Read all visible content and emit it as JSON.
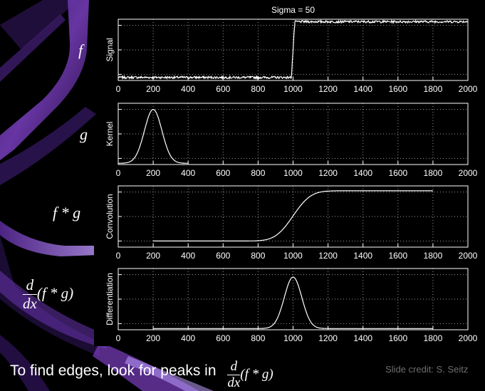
{
  "chart_data": [
    {
      "type": "line",
      "title": "Sigma = 50",
      "ylabel": "Signal",
      "side_label": "f",
      "xlim": [
        0,
        2000
      ],
      "xticks": [
        0,
        200,
        400,
        600,
        800,
        1000,
        1200,
        1400,
        1600,
        1800,
        2000
      ],
      "ylim": [
        0,
        1
      ],
      "grid": true,
      "description_points": [
        [
          0,
          0.05
        ],
        [
          990,
          0.05
        ],
        [
          1000,
          0.5
        ],
        [
          1010,
          0.96
        ],
        [
          2000,
          0.96
        ]
      ],
      "noise": 0.018
    },
    {
      "type": "line",
      "title": "",
      "ylabel": "Kernel",
      "side_label": "g",
      "xlim": [
        0,
        2000
      ],
      "xticks": [
        0,
        200,
        400,
        600,
        800,
        1000,
        1200,
        1400,
        1600,
        1800,
        2000
      ],
      "ylim": [
        0,
        1
      ],
      "grid": true,
      "gaussian": {
        "center": 200,
        "sigma": 50,
        "peak": 0.88,
        "x_range": [
          0,
          400
        ]
      }
    },
    {
      "type": "line",
      "title": "",
      "ylabel": "Convolution",
      "side_label": "f * g",
      "xlim": [
        0,
        2000
      ],
      "xticks": [
        0,
        200,
        400,
        600,
        800,
        1000,
        1200,
        1400,
        1600,
        1800,
        2000
      ],
      "ylim": [
        0,
        1
      ],
      "grid": true,
      "step": {
        "center": 1000,
        "sigma": 50,
        "low": 0.1,
        "high": 0.92,
        "x_range": [
          200,
          1800
        ]
      }
    },
    {
      "type": "line",
      "title": "",
      "ylabel": "Differentiation",
      "side_label": "d/dx (f * g)",
      "xlim": [
        0,
        2000
      ],
      "xticks": [
        0,
        200,
        400,
        600,
        800,
        1000,
        1200,
        1400,
        1600,
        1800,
        2000
      ],
      "ylim": [
        0,
        1
      ],
      "grid": true,
      "gaussian": {
        "center": 1000,
        "sigma": 50,
        "peak": 0.84,
        "x_range": [
          200,
          1800
        ]
      }
    }
  ],
  "labels": {
    "f": "f",
    "g": "g",
    "fg": "f * g",
    "d": "d",
    "dx": "dx",
    "paren": "(f * g)"
  },
  "caption": "To find edges, look for peaks in",
  "caption_math": {
    "d": "d",
    "dx": "dx",
    "paren": "(f * g)"
  },
  "credit": "Slide credit: S. Seitz",
  "colors": {
    "background": "#000000",
    "line": "#ffffff",
    "grid": "#9a9a9a",
    "accent": "#7a3fc0"
  }
}
